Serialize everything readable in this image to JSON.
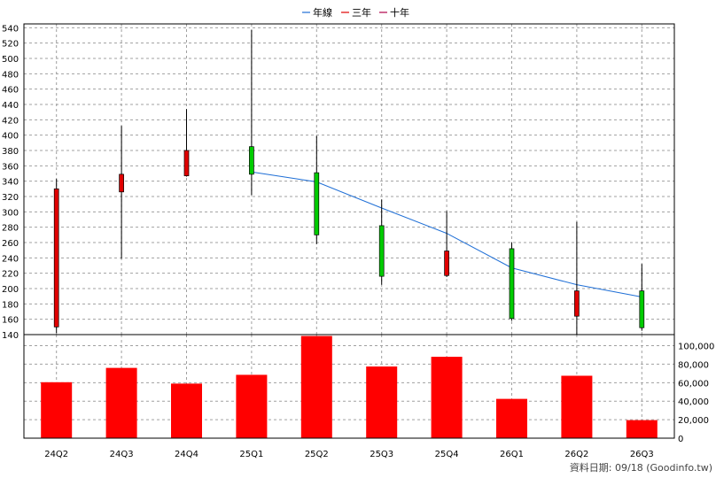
{
  "legend": [
    {
      "label": "年線",
      "color": "#1f6fd6"
    },
    {
      "label": "三年",
      "color": "#e00000"
    },
    {
      "label": "十年",
      "color": "#b0004a"
    }
  ],
  "footer": "資料日期: 09/18  (Goodinfo.tw)",
  "colors": {
    "up": "#e00000",
    "down": "#00cc00",
    "volume": "#ff0000",
    "line": "#1f6fd6",
    "grid": "#a0a0a0"
  },
  "chart_data": [
    {
      "type": "candlestick",
      "categories": [
        "24Q2",
        "24Q3",
        "24Q4",
        "25Q1",
        "25Q2",
        "25Q3",
        "25Q4",
        "26Q1",
        "26Q2",
        "26Q3"
      ],
      "ohlc": [
        {
          "open": 150,
          "high": 343,
          "low": 142,
          "close": 330
        },
        {
          "open": 326,
          "high": 412,
          "low": 239,
          "close": 349
        },
        {
          "open": 347,
          "high": 434,
          "low": 346,
          "close": 380
        },
        {
          "open": 385,
          "high": 537,
          "low": 322,
          "close": 349
        },
        {
          "open": 351,
          "high": 399,
          "low": 258,
          "close": 270
        },
        {
          "open": 282,
          "high": 316,
          "low": 205,
          "close": 216
        },
        {
          "open": 217,
          "high": 301,
          "low": 215,
          "close": 249
        },
        {
          "open": 252,
          "high": 260,
          "low": 158,
          "close": 161
        },
        {
          "open": 164,
          "high": 287,
          "low": 139,
          "close": 197
        },
        {
          "open": 197,
          "high": 232,
          "low": 145,
          "close": 149
        }
      ],
      "series": [
        {
          "name": "年線",
          "values": [
            null,
            null,
            null,
            352,
            339,
            305,
            272,
            227,
            205,
            189
          ]
        }
      ],
      "yticks": [
        140,
        160,
        180,
        200,
        220,
        240,
        260,
        280,
        300,
        320,
        340,
        360,
        380,
        400,
        420,
        440,
        460,
        480,
        500,
        520,
        540
      ],
      "ylim": [
        140,
        545
      ]
    },
    {
      "type": "bar",
      "categories": [
        "24Q2",
        "24Q3",
        "24Q4",
        "25Q1",
        "25Q2",
        "25Q3",
        "25Q4",
        "26Q1",
        "26Q2",
        "26Q3"
      ],
      "values": [
        60500,
        76000,
        59000,
        68500,
        110500,
        77500,
        88000,
        42500,
        67500,
        19500
      ],
      "yticks": [
        "0",
        "20,000",
        "40,000",
        "60,000",
        "80,000",
        "100,000"
      ],
      "ylim": [
        0,
        112000
      ]
    }
  ]
}
